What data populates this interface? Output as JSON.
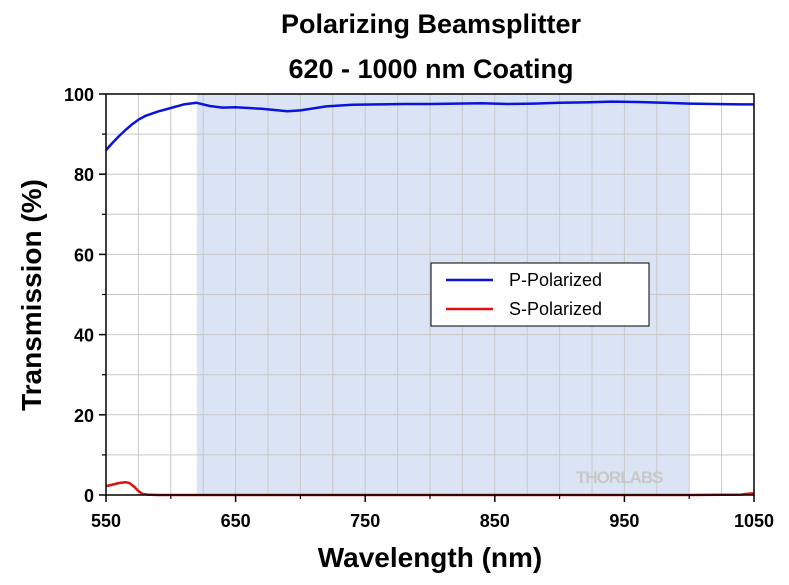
{
  "chart_data": {
    "type": "line",
    "title": [
      "Polarizing Beamsplitter",
      "620 - 1000 nm Coating"
    ],
    "xlabel": "Wavelength (nm)",
    "ylabel": "Transmission (%)",
    "xlim": [
      550,
      1050
    ],
    "ylim": [
      0,
      100
    ],
    "xticks": [
      550,
      650,
      750,
      850,
      950,
      1050
    ],
    "yticks": [
      0,
      20,
      40,
      60,
      80,
      100
    ],
    "grid": true,
    "shaded_region": {
      "x_from": 620,
      "x_to": 1000,
      "color": "#dbe4f5"
    },
    "legend_position": "center-right",
    "series": [
      {
        "name": "P-Polarized",
        "color": "#0a14d8",
        "x": [
          550,
          555,
          560,
          565,
          570,
          575,
          580,
          590,
          600,
          610,
          620,
          630,
          640,
          650,
          660,
          670,
          680,
          690,
          700,
          710,
          720,
          740,
          760,
          780,
          800,
          820,
          840,
          860,
          880,
          900,
          920,
          940,
          960,
          980,
          1000,
          1020,
          1040,
          1050
        ],
        "values": [
          86.0,
          87.8,
          89.5,
          91.0,
          92.4,
          93.6,
          94.5,
          95.6,
          96.5,
          97.4,
          97.8,
          97.0,
          96.6,
          96.7,
          96.5,
          96.3,
          96.0,
          95.7,
          95.9,
          96.4,
          96.9,
          97.3,
          97.4,
          97.5,
          97.5,
          97.6,
          97.7,
          97.5,
          97.6,
          97.8,
          97.9,
          98.1,
          98.0,
          97.8,
          97.6,
          97.5,
          97.4,
          97.4
        ]
      },
      {
        "name": "S-Polarized",
        "color": "#e01010",
        "x": [
          550,
          555,
          560,
          565,
          568,
          572,
          575,
          578,
          582,
          590,
          620,
          700,
          800,
          900,
          1000,
          1040,
          1045,
          1050
        ],
        "values": [
          2.2,
          2.6,
          3.0,
          3.2,
          3.0,
          2.0,
          1.0,
          0.3,
          0.1,
          0.0,
          0.0,
          0.0,
          0.0,
          0.0,
          0.0,
          0.1,
          0.3,
          0.4
        ]
      }
    ]
  },
  "watermark": "THORLABS"
}
